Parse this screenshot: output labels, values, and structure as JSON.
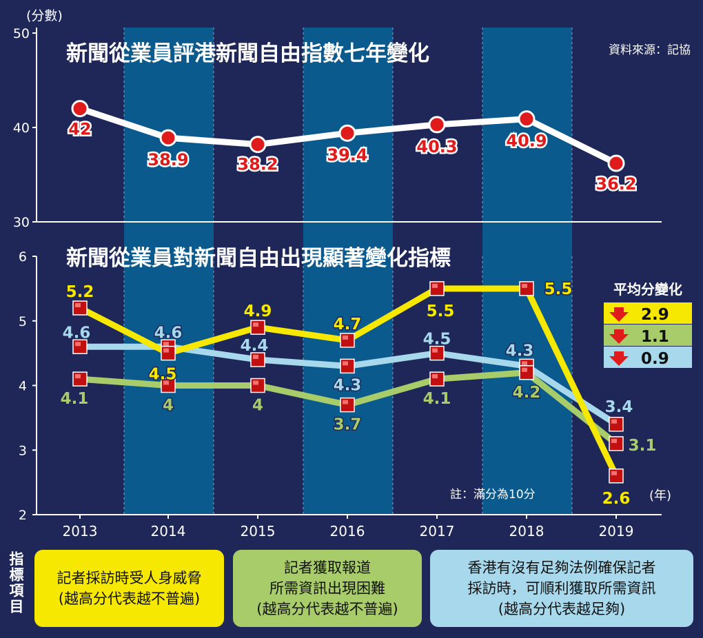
{
  "colors": {
    "background": "#1e2757",
    "band": "#0b5a8e",
    "yellow": "#f6e800",
    "green": "#a9cc6a",
    "blue": "#a7d8ec",
    "red": "#e01b1b",
    "white": "#ffffff"
  },
  "header": {
    "unit_label": "(分數)",
    "source": "資料來源：記協",
    "note": "註：滿分為10分",
    "year_unit": "(年)"
  },
  "avg_box": {
    "title": "平均分變化",
    "items": [
      {
        "color": "yellow",
        "value": "2.9",
        "direction": "down"
      },
      {
        "color": "green",
        "value": "1.1",
        "direction": "down"
      },
      {
        "color": "blue",
        "value": "0.9",
        "direction": "down"
      }
    ]
  },
  "legend": {
    "title": "指標項目",
    "items": [
      {
        "color": "yellow",
        "lines": [
          "記者採訪時受人身威脅",
          "(越高分代表越不普遍)"
        ]
      },
      {
        "color": "green",
        "lines": [
          "記者獲取報道",
          "所需資訊出現困難",
          "(越高分代表越不普遍)"
        ]
      },
      {
        "color": "blue",
        "lines": [
          "香港有沒有足夠法例確保記者",
          "採訪時，可順利獲取所需資訊",
          "(越高分代表越足夠)"
        ]
      }
    ]
  },
  "chart_data": [
    {
      "type": "line",
      "title": "新聞從業員評港新聞自由指數七年變化",
      "x": [
        "2013",
        "2014",
        "2015",
        "2016",
        "2017",
        "2018",
        "2019"
      ],
      "ylim": [
        30,
        50
      ],
      "yticks": [
        "30",
        "40",
        "50"
      ],
      "series": [
        {
          "color": "white",
          "values": [
            42,
            38.9,
            38.2,
            39.4,
            40.3,
            40.9,
            36.2
          ],
          "labels": [
            "42",
            "38.9",
            "38.2",
            "39.4",
            "40.3",
            "40.9",
            "36.2"
          ]
        }
      ]
    },
    {
      "type": "line",
      "title": "新聞從業員對新聞自由出現顯著變化指標",
      "x": [
        "2013",
        "2014",
        "2015",
        "2016",
        "2017",
        "2018",
        "2019"
      ],
      "ylim": [
        2,
        6
      ],
      "yticks": [
        "2",
        "3",
        "4",
        "5",
        "6"
      ],
      "series": [
        {
          "color": "blue",
          "values": [
            4.6,
            4.6,
            4.4,
            4.3,
            4.5,
            4.3,
            3.4
          ],
          "labels": [
            "4.6",
            "4.6",
            "4.4",
            "4.3",
            "4.5",
            "4.3",
            "3.4"
          ]
        },
        {
          "color": "green",
          "values": [
            4.1,
            4,
            4,
            3.7,
            4.1,
            4.2,
            3.1
          ],
          "labels": [
            "4.1",
            "4",
            "4",
            "3.7",
            "4.1",
            "4.2",
            "3.1"
          ]
        },
        {
          "color": "yellow",
          "values": [
            5.2,
            4.5,
            4.9,
            4.7,
            5.5,
            5.5,
            2.6
          ],
          "labels": [
            "5.2",
            "4.5",
            "4.9",
            "4.7",
            "5.5",
            "5.5",
            "2.6"
          ]
        }
      ]
    }
  ]
}
